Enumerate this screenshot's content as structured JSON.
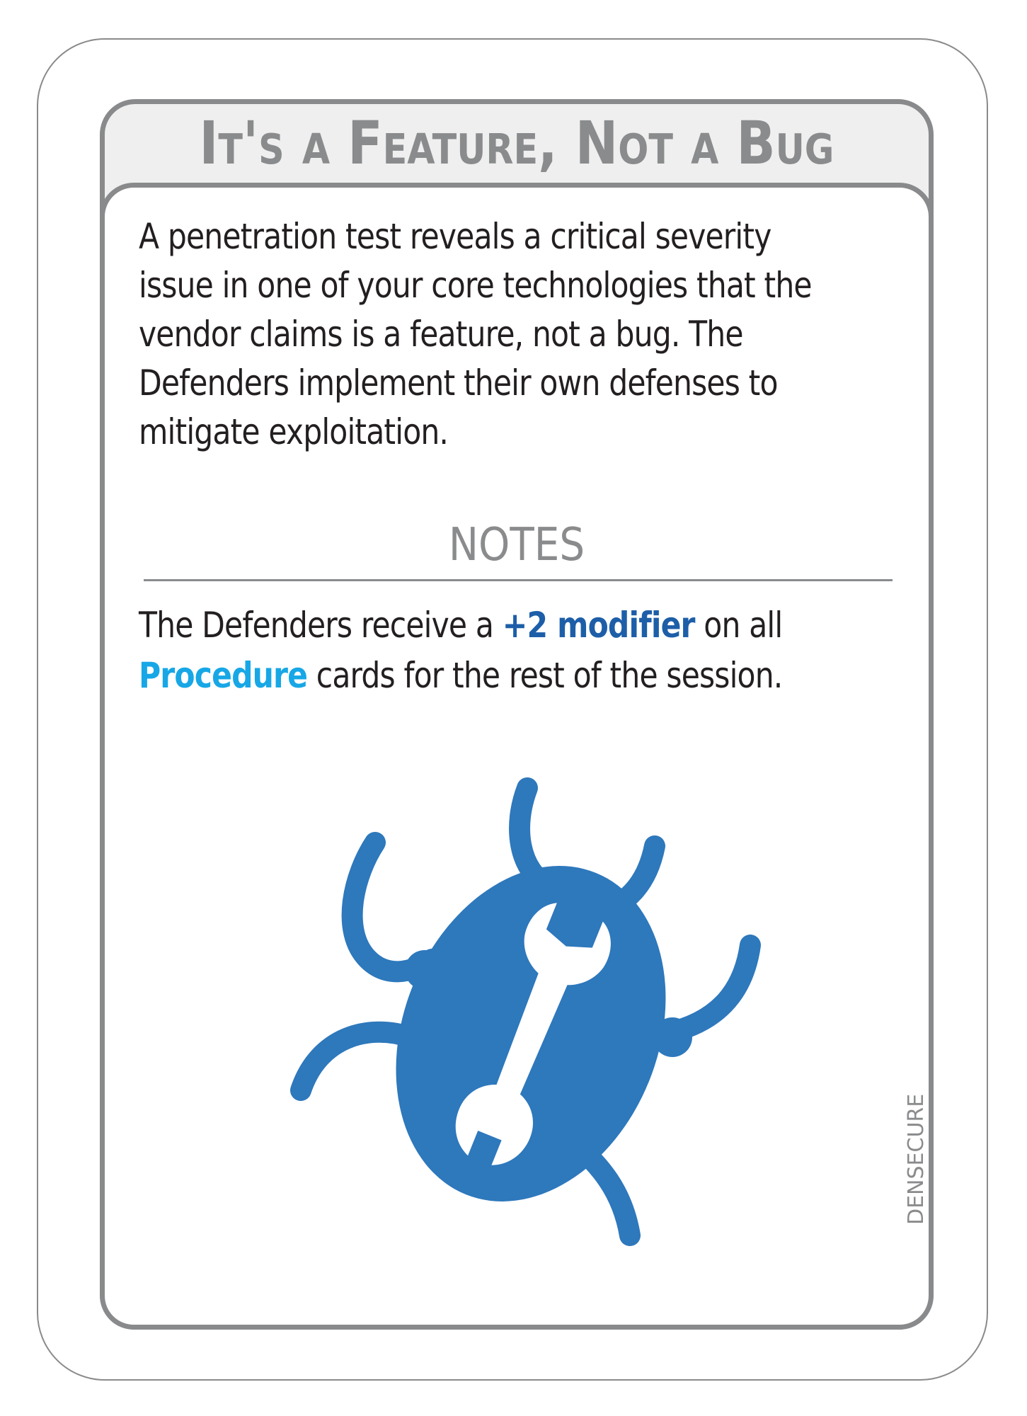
{
  "card": {
    "title": "It's a Feature, Not a Bug",
    "body_lines": [
      "A penetration test reveals a critical severity",
      "issue in one of your core technologies that the",
      "vendor claims is a feature, not a bug. The",
      "Defenders implement their own defenses to",
      "mitigate exploitation."
    ],
    "notes_heading": "NOTES",
    "notes": {
      "line1_prefix": "The Defenders receive a ",
      "modifier": "+2 modifier",
      "line1_suffix": " on all",
      "procedure": "Procedure",
      "line2_suffix": " cards for the rest of the session."
    },
    "icon": "bug-wrench-icon",
    "credit": "DENSECURE"
  },
  "colors": {
    "frame": "#898a8c",
    "title_band": "#efefef",
    "modifier": "#1d5ea8",
    "procedure": "#17a7e6",
    "icon": "#2e78bc"
  }
}
